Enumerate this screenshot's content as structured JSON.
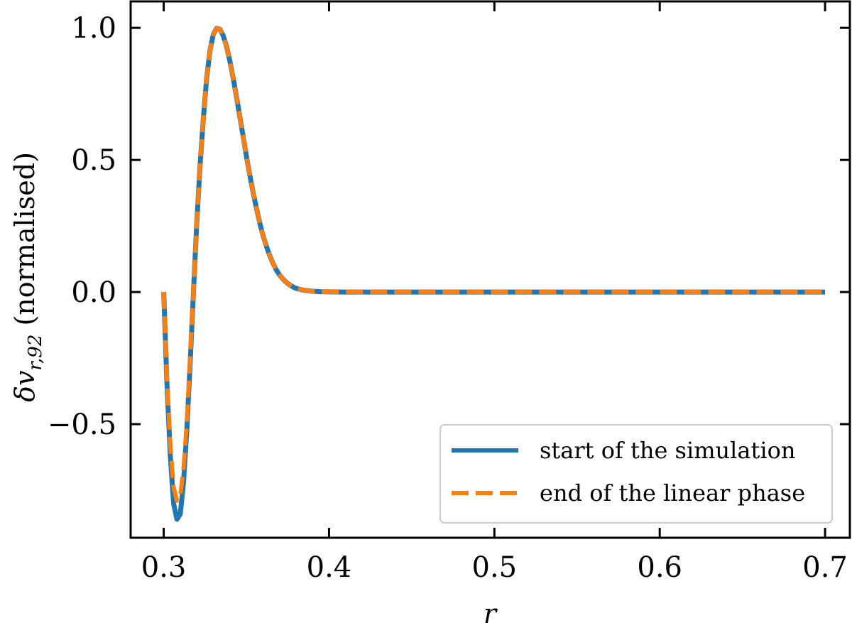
{
  "chart_data": {
    "type": "line",
    "xlabel": "r",
    "ylabel": "δv_{r,92} (normalised)",
    "xlim": [
      0.28,
      0.715
    ],
    "ylim": [
      -0.93,
      1.1
    ],
    "xticks": [
      0.3,
      0.4,
      0.5,
      0.6,
      0.7
    ],
    "yticks": [
      -0.5,
      0.0,
      0.5,
      1.0
    ],
    "xtick_labels": [
      "0.3",
      "0.4",
      "0.5",
      "0.6",
      "0.7"
    ],
    "ytick_labels": [
      "−0.5",
      "0.0",
      "0.5",
      "1.0"
    ],
    "legend_position": "lower-right",
    "grid": false,
    "series": [
      {
        "name": "start of the simulation",
        "color": "#1f77b4",
        "style": "solid",
        "x": [
          0.3,
          0.302,
          0.304,
          0.306,
          0.308,
          0.31,
          0.312,
          0.314,
          0.316,
          0.318,
          0.32,
          0.322,
          0.324,
          0.326,
          0.328,
          0.33,
          0.332,
          0.334,
          0.336,
          0.338,
          0.34,
          0.342,
          0.344,
          0.346,
          0.348,
          0.35,
          0.352,
          0.354,
          0.356,
          0.358,
          0.36,
          0.362,
          0.364,
          0.366,
          0.368,
          0.37,
          0.372,
          0.374,
          0.376,
          0.378,
          0.38,
          0.383,
          0.386,
          0.39,
          0.395,
          0.4,
          0.405,
          0.41,
          0.42,
          0.45,
          0.5,
          0.6,
          0.7
        ],
        "y": [
          0.0,
          -0.35,
          -0.62,
          -0.8,
          -0.86,
          -0.84,
          -0.72,
          -0.52,
          -0.27,
          0.0,
          0.26,
          0.48,
          0.66,
          0.81,
          0.915,
          0.975,
          0.998,
          0.995,
          0.97,
          0.93,
          0.875,
          0.81,
          0.74,
          0.665,
          0.59,
          0.515,
          0.445,
          0.38,
          0.32,
          0.265,
          0.215,
          0.175,
          0.14,
          0.11,
          0.085,
          0.065,
          0.05,
          0.038,
          0.028,
          0.02,
          0.014,
          0.009,
          0.006,
          0.003,
          0.0015,
          0.0007,
          0.0003,
          0.0001,
          0.0,
          0.0,
          0.0,
          0.0,
          0.0
        ]
      },
      {
        "name": "end of the linear phase",
        "color": "#ff7f0e",
        "style": "dashed",
        "x": [
          0.3,
          0.302,
          0.304,
          0.306,
          0.308,
          0.31,
          0.312,
          0.314,
          0.316,
          0.318,
          0.32,
          0.322,
          0.324,
          0.326,
          0.328,
          0.33,
          0.332,
          0.334,
          0.336,
          0.338,
          0.34,
          0.342,
          0.344,
          0.346,
          0.348,
          0.35,
          0.352,
          0.354,
          0.356,
          0.358,
          0.36,
          0.362,
          0.364,
          0.366,
          0.368,
          0.37,
          0.372,
          0.374,
          0.376,
          0.378,
          0.38,
          0.383,
          0.386,
          0.39,
          0.395,
          0.4,
          0.405,
          0.41,
          0.42,
          0.45,
          0.5,
          0.6,
          0.7
        ],
        "y": [
          0.0,
          -0.33,
          -0.58,
          -0.74,
          -0.79,
          -0.77,
          -0.67,
          -0.49,
          -0.25,
          0.0,
          0.26,
          0.48,
          0.66,
          0.81,
          0.915,
          0.975,
          0.998,
          0.995,
          0.97,
          0.93,
          0.875,
          0.81,
          0.74,
          0.665,
          0.59,
          0.515,
          0.445,
          0.38,
          0.32,
          0.265,
          0.215,
          0.175,
          0.14,
          0.11,
          0.085,
          0.065,
          0.05,
          0.038,
          0.028,
          0.02,
          0.014,
          0.009,
          0.006,
          0.003,
          0.0015,
          0.0007,
          0.0003,
          0.0001,
          0.0,
          0.0,
          0.0,
          0.0,
          0.0
        ]
      }
    ]
  }
}
